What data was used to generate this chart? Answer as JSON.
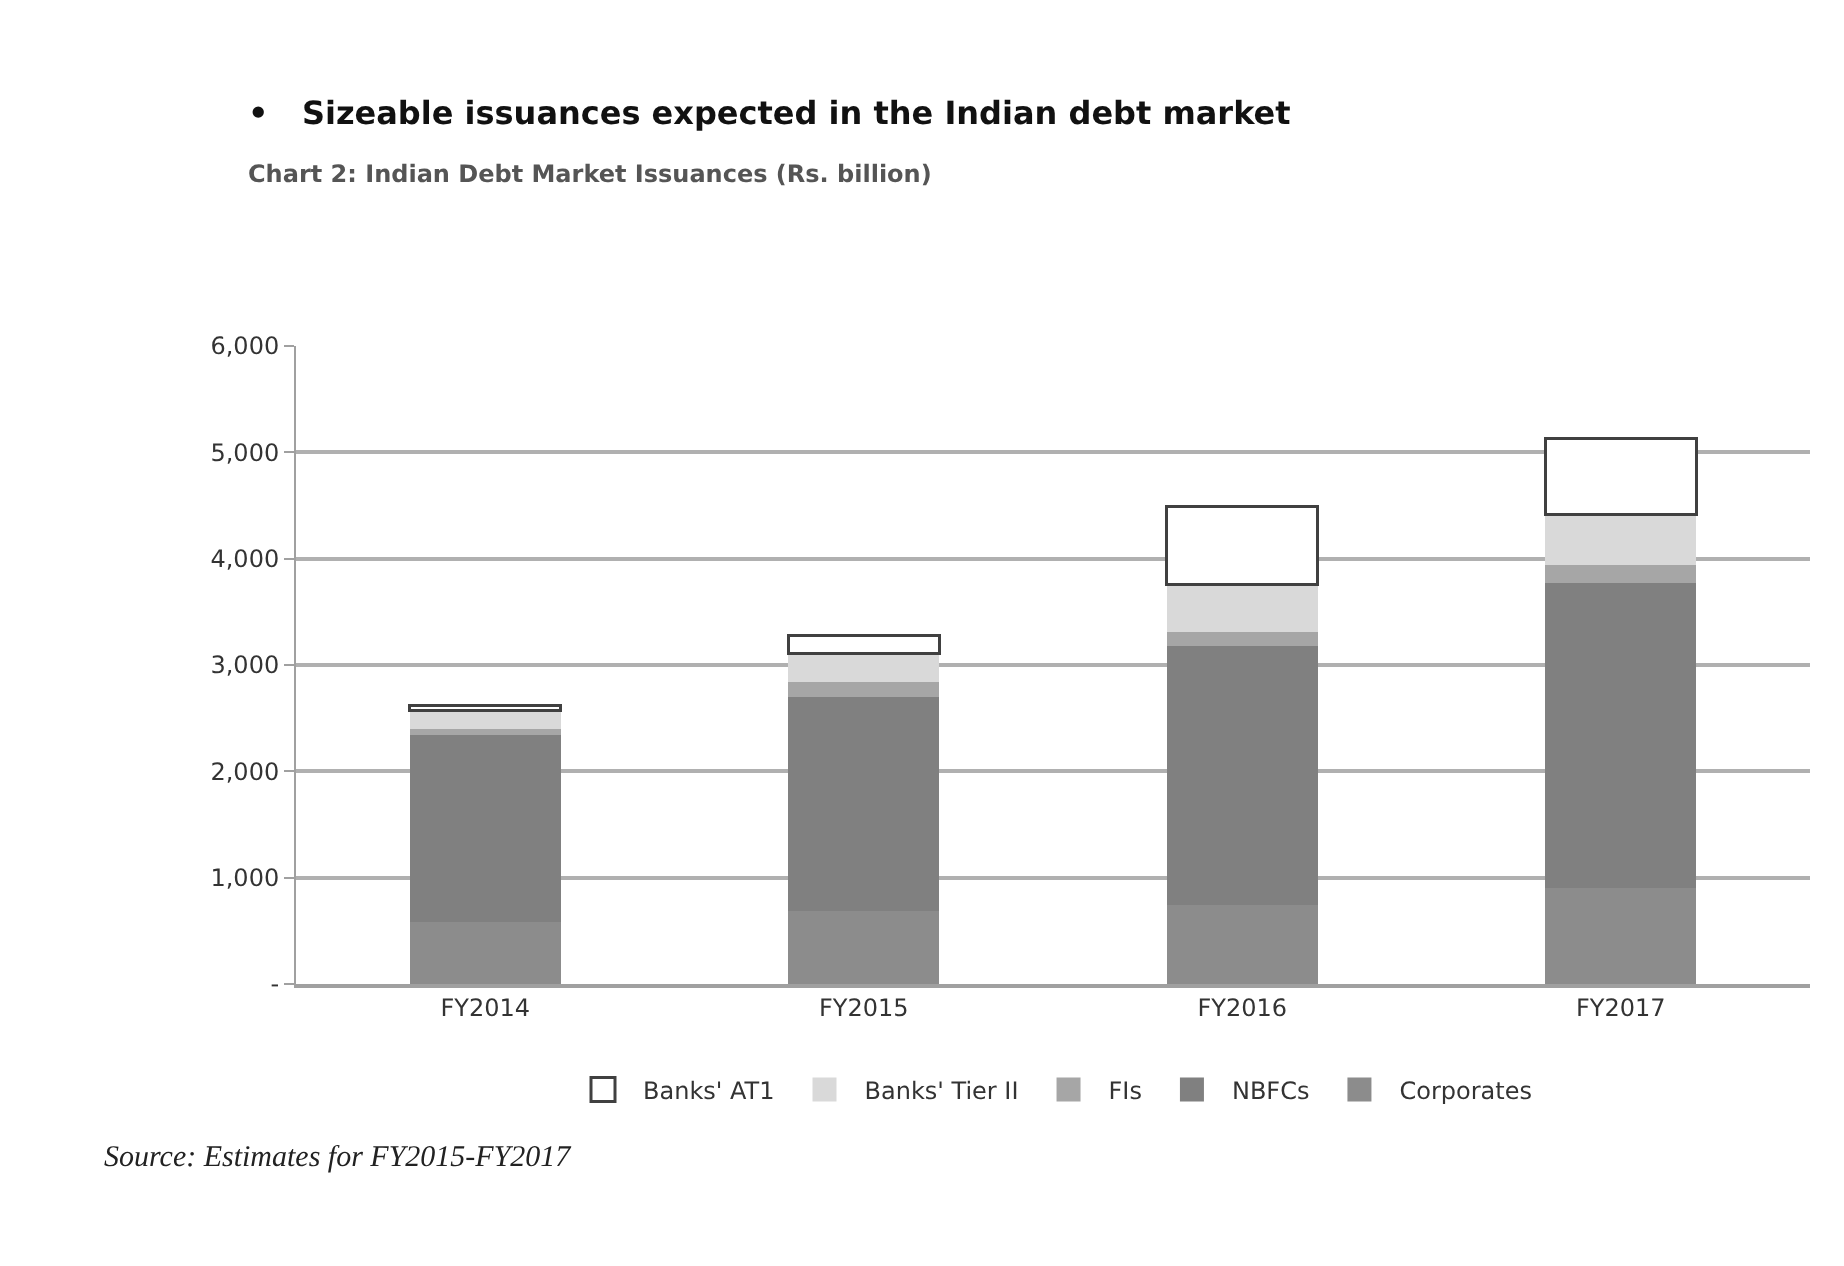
{
  "chart_data": {
    "type": "bar",
    "stacked": true,
    "title": "•   Sizeable issuances expected in the Indian debt market",
    "subtitle": "Chart 2: Indian Debt Market Issuances (Rs. billion)",
    "categories": [
      "FY2014",
      "FY2015",
      "FY2016",
      "FY2017"
    ],
    "series": [
      {
        "name": "Corporates",
        "color": "#8c8c8c",
        "values": [
          585,
          690,
          740,
          900
        ]
      },
      {
        "name": "NBFCs",
        "color": "#808080",
        "values": [
          1760,
          2010,
          2440,
          2870
        ]
      },
      {
        "name": "FIs",
        "color": "#a6a6a6",
        "values": [
          50,
          140,
          130,
          175
        ]
      },
      {
        "name": "Banks' Tier II",
        "color": "#d9d9d9",
        "values": [
          175,
          270,
          445,
          470
        ]
      },
      {
        "name": "Banks' AT1",
        "color": "#ffffff",
        "values": [
          50,
          165,
          735,
          715
        ]
      }
    ],
    "ylim": [
      0,
      6000
    ],
    "yticks": [
      {
        "value": 0,
        "label": "-"
      },
      {
        "value": 1000,
        "label": "1,000"
      },
      {
        "value": 2000,
        "label": "2,000"
      },
      {
        "value": 3000,
        "label": "3,000"
      },
      {
        "value": 4000,
        "label": "4,000"
      },
      {
        "value": 5000,
        "label": "5,000"
      },
      {
        "value": 6000,
        "label": "6,000"
      }
    ],
    "grid": "y",
    "legend": "bottom",
    "annotations": [
      "Source: Estimates for FY2015-FY2017"
    ]
  }
}
